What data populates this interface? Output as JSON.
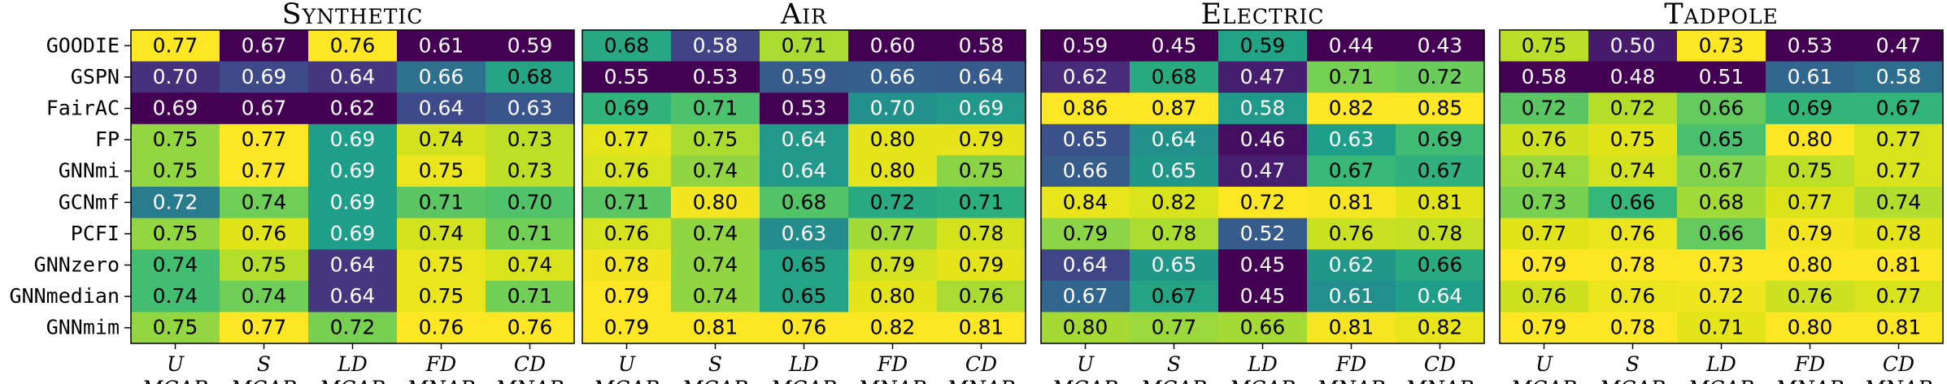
{
  "chart_data": {
    "type": "heatmap",
    "colormap": "viridis",
    "rows": [
      "GOODIE",
      "GSPN",
      "FairAC",
      "FP",
      "GNNmi",
      "GCNmf",
      "PCFI",
      "GNNzero",
      "GNNmedian",
      "GNNmim"
    ],
    "columns": [
      {
        "line1": "U",
        "line2": "MCAR"
      },
      {
        "line1": "S",
        "line2": "MCAR"
      },
      {
        "line1": "LD",
        "line2": "MCAR"
      },
      {
        "line1": "FD",
        "line2": "MNAR"
      },
      {
        "line1": "CD",
        "line2": "MNAR"
      }
    ],
    "panels": [
      {
        "title": "Synthetic",
        "values": [
          [
            "0.77",
            "0.67",
            "0.76",
            "0.61",
            "0.59"
          ],
          [
            "0.70",
            "0.69",
            "0.64",
            "0.66",
            "0.68"
          ],
          [
            "0.69",
            "0.67",
            "0.62",
            "0.64",
            "0.63"
          ],
          [
            "0.75",
            "0.77",
            "0.69",
            "0.74",
            "0.73"
          ],
          [
            "0.75",
            "0.77",
            "0.69",
            "0.75",
            "0.73"
          ],
          [
            "0.72",
            "0.74",
            "0.69",
            "0.71",
            "0.70"
          ],
          [
            "0.75",
            "0.76",
            "0.69",
            "0.74",
            "0.71"
          ],
          [
            "0.74",
            "0.75",
            "0.64",
            "0.75",
            "0.74"
          ],
          [
            "0.74",
            "0.74",
            "0.64",
            "0.75",
            "0.71"
          ],
          [
            "0.75",
            "0.77",
            "0.72",
            "0.76",
            "0.76"
          ]
        ]
      },
      {
        "title": "Air",
        "values": [
          [
            "0.68",
            "0.58",
            "0.71",
            "0.60",
            "0.58"
          ],
          [
            "0.55",
            "0.53",
            "0.59",
            "0.66",
            "0.64"
          ],
          [
            "0.69",
            "0.71",
            "0.53",
            "0.70",
            "0.69"
          ],
          [
            "0.77",
            "0.75",
            "0.64",
            "0.80",
            "0.79"
          ],
          [
            "0.76",
            "0.74",
            "0.64",
            "0.80",
            "0.75"
          ],
          [
            "0.71",
            "0.80",
            "0.68",
            "0.72",
            "0.71"
          ],
          [
            "0.76",
            "0.74",
            "0.63",
            "0.77",
            "0.78"
          ],
          [
            "0.78",
            "0.74",
            "0.65",
            "0.79",
            "0.79"
          ],
          [
            "0.79",
            "0.74",
            "0.65",
            "0.80",
            "0.76"
          ],
          [
            "0.79",
            "0.81",
            "0.76",
            "0.82",
            "0.81"
          ]
        ]
      },
      {
        "title": "Electric",
        "values": [
          [
            "0.59",
            "0.45",
            "0.59",
            "0.44",
            "0.43"
          ],
          [
            "0.62",
            "0.68",
            "0.47",
            "0.71",
            "0.72"
          ],
          [
            "0.86",
            "0.87",
            "0.58",
            "0.82",
            "0.85"
          ],
          [
            "0.65",
            "0.64",
            "0.46",
            "0.63",
            "0.69"
          ],
          [
            "0.66",
            "0.65",
            "0.47",
            "0.67",
            "0.67"
          ],
          [
            "0.84",
            "0.82",
            "0.72",
            "0.81",
            "0.81"
          ],
          [
            "0.79",
            "0.78",
            "0.52",
            "0.76",
            "0.78"
          ],
          [
            "0.64",
            "0.65",
            "0.45",
            "0.62",
            "0.66"
          ],
          [
            "0.67",
            "0.67",
            "0.45",
            "0.61",
            "0.64"
          ],
          [
            "0.80",
            "0.77",
            "0.66",
            "0.81",
            "0.82"
          ]
        ]
      },
      {
        "title": "Tadpole",
        "values": [
          [
            "0.75",
            "0.50",
            "0.73",
            "0.53",
            "0.47"
          ],
          [
            "0.58",
            "0.48",
            "0.51",
            "0.61",
            "0.58"
          ],
          [
            "0.72",
            "0.72",
            "0.66",
            "0.69",
            "0.67"
          ],
          [
            "0.76",
            "0.75",
            "0.65",
            "0.80",
            "0.77"
          ],
          [
            "0.74",
            "0.74",
            "0.67",
            "0.75",
            "0.77"
          ],
          [
            "0.73",
            "0.66",
            "0.68",
            "0.77",
            "0.74"
          ],
          [
            "0.77",
            "0.76",
            "0.66",
            "0.79",
            "0.78"
          ],
          [
            "0.79",
            "0.78",
            "0.73",
            "0.80",
            "0.81"
          ],
          [
            "0.76",
            "0.76",
            "0.72",
            "0.76",
            "0.77"
          ],
          [
            "0.79",
            "0.78",
            "0.71",
            "0.80",
            "0.81"
          ]
        ]
      }
    ]
  }
}
